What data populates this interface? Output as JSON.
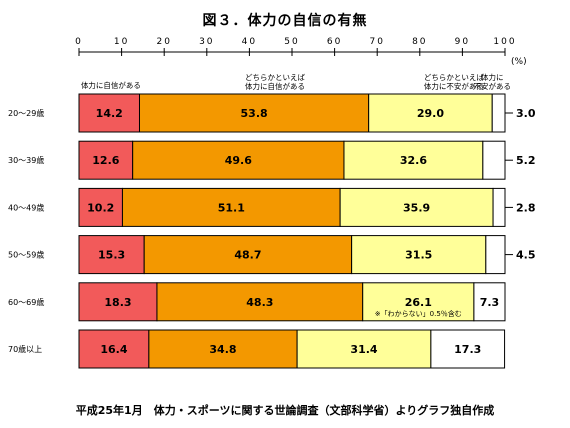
{
  "title": "図３．体力の自信の有無",
  "source": "平成25年1月　体力・スポーツに関する世論調査（文部科学省）よりグラフ独自作成",
  "colors": {
    "confident": "#f25a5a",
    "somewhat_confident": "#f39800",
    "somewhat_anxious": "#ffff99",
    "anxious": "#ffffff"
  },
  "chart_data": {
    "type": "bar",
    "orientation": "horizontal",
    "stacked": true,
    "xlim": [
      0,
      100
    ],
    "x_ticks": [
      "0",
      "10",
      "20",
      "30",
      "40",
      "50",
      "60",
      "70",
      "80",
      "90",
      "100"
    ],
    "x_unit": "(%)",
    "grid": false,
    "legend_position": "top",
    "categories": [
      "20～29歳",
      "30～39歳",
      "40～49歳",
      "50～59歳",
      "60～69歳",
      "70歳以上"
    ],
    "series": [
      {
        "name": "体力に自信がある",
        "values": [
          14.2,
          12.6,
          10.2,
          15.3,
          18.3,
          16.4
        ]
      },
      {
        "name": "どちらかといえば体力に自信がある",
        "values": [
          53.8,
          49.6,
          51.1,
          48.7,
          48.3,
          34.8
        ]
      },
      {
        "name": "どちらかといえば体力に不安がある",
        "values": [
          29.0,
          32.6,
          35.9,
          31.5,
          26.1,
          31.4
        ]
      },
      {
        "name": "体力に不安がある",
        "values": [
          3.0,
          5.2,
          2.8,
          4.5,
          7.3,
          17.3
        ]
      }
    ],
    "legend_labels": [
      [
        "体力に自信がある"
      ],
      [
        "どちらかといえば",
        "体力に自信がある"
      ],
      [
        "どちらかといえば",
        "体力に不安がある"
      ],
      [
        "体力に",
        "不安がある"
      ]
    ],
    "annotations": [
      {
        "row": 4,
        "text": "※「わからない」0.5％含む"
      }
    ]
  }
}
